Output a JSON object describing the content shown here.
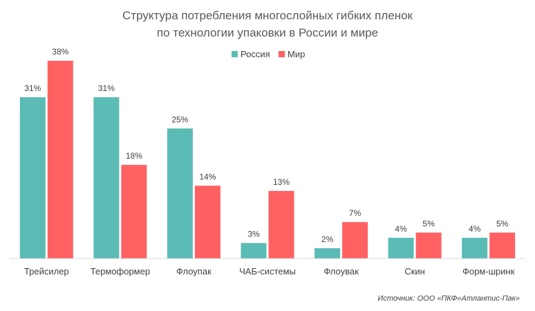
{
  "chart_data": {
    "type": "bar",
    "title_lines": [
      "Структура потребления многослойных гибких пленок",
      "по технологии упаковки в России и мире"
    ],
    "categories": [
      "Трейсилер",
      "Термоформер",
      "Флоупак",
      "ЧАБ-системы",
      "Флоувак",
      "Скин",
      "Форм-шринк"
    ],
    "series": [
      {
        "name": "Россия",
        "color": "#5bbbb5",
        "values": [
          31,
          31,
          25,
          3,
          2,
          4,
          4
        ]
      },
      {
        "name": "Мир",
        "color": "#ff6163",
        "values": [
          38,
          18,
          14,
          13,
          7,
          5,
          5
        ]
      }
    ],
    "value_suffix": "%",
    "ylim": [
      0,
      40
    ],
    "legend_position": "top-center",
    "grid": false,
    "source": "Источник: ООО «ПКФ«Атлантис-Пак»"
  }
}
